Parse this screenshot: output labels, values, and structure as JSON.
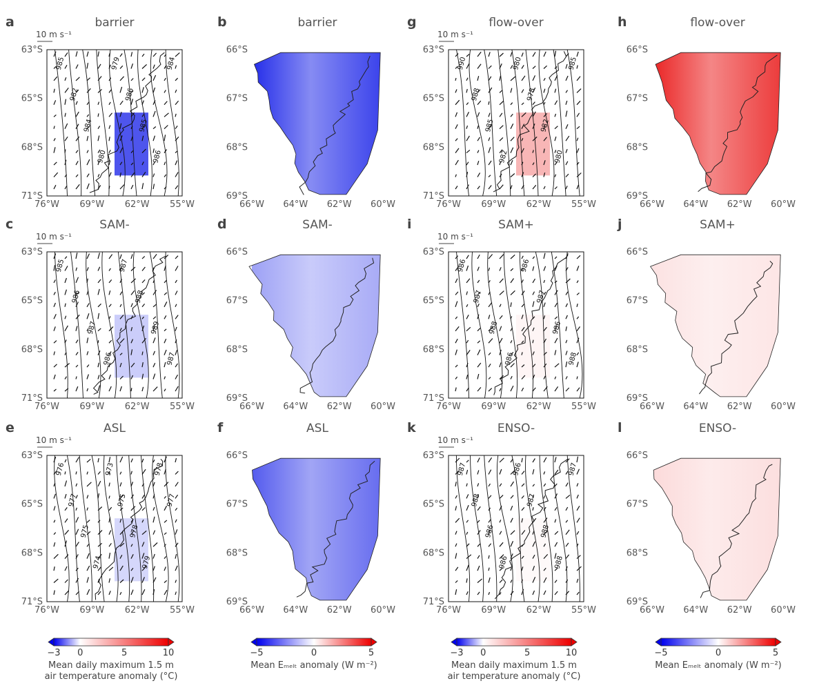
{
  "figure": {
    "panels": [
      {
        "id": "a",
        "letter": "a",
        "title": "barrier",
        "kind": "wind",
        "scale": "10 m s⁻¹",
        "lat_ticks": [
          "63°S",
          "65°S",
          "68°S",
          "71°S"
        ],
        "lon_ticks": [
          "76°W",
          "69°W",
          "62°W",
          "55°W"
        ],
        "contours": [
          "985",
          "982",
          "984",
          "980",
          "979",
          "986",
          "985",
          "986",
          "984"
        ],
        "anomaly": {
          "sign": "negative",
          "strength": 0.85
        }
      },
      {
        "id": "b",
        "letter": "b",
        "title": "barrier",
        "kind": "melt",
        "lat_ticks": [
          "66°S",
          "67°S",
          "68°S",
          "69°S"
        ],
        "lon_ticks": [
          "66°W",
          "64°W",
          "62°W",
          "60°W"
        ],
        "anomaly": {
          "sign": "negative",
          "strength": 0.9
        }
      },
      {
        "id": "c",
        "letter": "c",
        "title": "SAM-",
        "kind": "wind",
        "scale": "10 m s⁻¹",
        "lat_ticks": [
          "63°S",
          "65°S",
          "68°S",
          "71°S"
        ],
        "lon_ticks": [
          "76°W",
          "69°W",
          "62°W",
          "55°W"
        ],
        "contours": [
          "985",
          "986",
          "987",
          "986",
          "987",
          "988",
          "989",
          "987"
        ],
        "anomaly": {
          "sign": "negative",
          "strength": 0.25
        }
      },
      {
        "id": "d",
        "letter": "d",
        "title": "SAM-",
        "kind": "melt",
        "lat_ticks": [
          "66°S",
          "67°S",
          "68°S",
          "69°S"
        ],
        "lon_ticks": [
          "66°W",
          "64°W",
          "62°W",
          "60°W"
        ],
        "anomaly": {
          "sign": "negative",
          "strength": 0.4
        }
      },
      {
        "id": "e",
        "letter": "e",
        "title": "ASL",
        "kind": "wind",
        "scale": "10 m s⁻¹",
        "lat_ticks": [
          "63°S",
          "65°S",
          "68°S",
          "71°S"
        ],
        "lon_ticks": [
          "76°W",
          "69°W",
          "62°W",
          "55°W"
        ],
        "contours": [
          "976",
          "977",
          "975",
          "974",
          "973",
          "975",
          "978",
          "979",
          "978",
          "977"
        ],
        "anomaly": {
          "sign": "negative",
          "strength": 0.2
        }
      },
      {
        "id": "f",
        "letter": "f",
        "title": "ASL",
        "kind": "melt",
        "lat_ticks": [
          "66°S",
          "67°S",
          "68°S",
          "69°S"
        ],
        "lon_ticks": [
          "66°W",
          "64°W",
          "62°W",
          "60°W"
        ],
        "anomaly": {
          "sign": "negative",
          "strength": 0.7
        }
      },
      {
        "id": "g",
        "letter": "g",
        "title": "flow-over",
        "kind": "wind",
        "scale": "10 m s⁻¹",
        "lat_ticks": [
          "63°S",
          "65°S",
          "68°S",
          "71°S"
        ],
        "lon_ticks": [
          "76°W",
          "69°W",
          "62°W",
          "55°W"
        ],
        "contours": [
          "990",
          "988",
          "985",
          "982",
          "980",
          "978",
          "982",
          "980",
          "985"
        ],
        "anomaly": {
          "sign": "positive",
          "strength": 0.35
        }
      },
      {
        "id": "h",
        "letter": "h",
        "title": "flow-over",
        "kind": "melt",
        "lat_ticks": [
          "66°S",
          "67°S",
          "68°S",
          "69°S"
        ],
        "lon_ticks": [
          "66°W",
          "64°W",
          "62°W",
          "60°W"
        ],
        "anomaly": {
          "sign": "positive",
          "strength": 0.9
        }
      },
      {
        "id": "i",
        "letter": "i",
        "title": "SAM+",
        "kind": "wind",
        "scale": "10 m s⁻¹",
        "lat_ticks": [
          "63°S",
          "65°S",
          "68°S",
          "71°S"
        ],
        "lon_ticks": [
          "76°W",
          "69°W",
          "62°W",
          "55°W"
        ],
        "contours": [
          "986",
          "987",
          "988",
          "986",
          "986",
          "987",
          "986",
          "988"
        ],
        "anomaly": {
          "sign": "positive",
          "strength": 0.05
        }
      },
      {
        "id": "j",
        "letter": "j",
        "title": "SAM+",
        "kind": "melt",
        "lat_ticks": [
          "66°S",
          "67°S",
          "68°S",
          "69°S"
        ],
        "lon_ticks": [
          "66°W",
          "64°W",
          "62°W",
          "60°W"
        ],
        "anomaly": {
          "sign": "positive",
          "strength": 0.12
        }
      },
      {
        "id": "k",
        "letter": "k",
        "title": "ENSO-",
        "kind": "wind",
        "scale": "10 m s⁻¹",
        "lat_ticks": [
          "63°S",
          "65°S",
          "68°S",
          "71°S"
        ],
        "lon_ticks": [
          "76°W",
          "69°W",
          "62°W",
          "55°W"
        ],
        "contours": [
          "987",
          "988",
          "986",
          "986",
          "986",
          "987",
          "988",
          "988",
          "987"
        ],
        "anomaly": {
          "sign": "positive",
          "strength": 0.03
        }
      },
      {
        "id": "l",
        "letter": "l",
        "title": "ENSO-",
        "kind": "melt",
        "lat_ticks": [
          "66°S",
          "67°S",
          "68°S",
          "69°S"
        ],
        "lon_ticks": [
          "66°W",
          "64°W",
          "62°W",
          "60°W"
        ],
        "anomaly": {
          "sign": "positive",
          "strength": 0.15
        }
      }
    ],
    "colorbars": [
      {
        "id": "cb1",
        "ticks": [
          "−3",
          "0",
          "5",
          "10"
        ],
        "label_lines": [
          "Mean daily maximum 1.5 m",
          "air temperature anomaly (°C)"
        ],
        "range": [
          -3,
          10
        ]
      },
      {
        "id": "cb2",
        "ticks": [
          "−5",
          "0",
          "5"
        ],
        "label_lines": [
          "Mean Eₘₑₗₜ anomaly (W m⁻²)"
        ],
        "range": [
          -5,
          5
        ]
      },
      {
        "id": "cb3",
        "ticks": [
          "−3",
          "0",
          "5",
          "10"
        ],
        "label_lines": [
          "Mean daily maximum 1.5 m",
          "air temperature anomaly (°C)"
        ],
        "range": [
          -3,
          10
        ]
      },
      {
        "id": "cb4",
        "ticks": [
          "−5",
          "0",
          "5"
        ],
        "label_lines": [
          "Mean Eₘₑₗₜ anomaly (W m⁻²)"
        ],
        "range": [
          -5,
          5
        ]
      }
    ],
    "colors": {
      "negative": "#0a14e6",
      "positive": "#e80a0a",
      "neutral": "#ffffff",
      "line": "#111111"
    }
  }
}
